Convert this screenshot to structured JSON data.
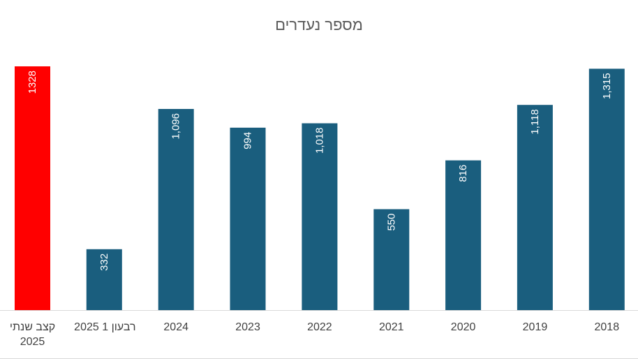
{
  "chart_data": {
    "type": "bar",
    "title": "מספר נעדרים",
    "xlabel": "",
    "ylabel": "",
    "ylim": [
      0,
      1400
    ],
    "grid": false,
    "legend": "none",
    "categories": [
      "קצב שנתי 2025",
      "רבעון 1 2025",
      "2024",
      "2023",
      "2022",
      "2021",
      "2020",
      "2019",
      "2018"
    ],
    "values": [
      1328,
      332,
      1096,
      994,
      1018,
      550,
      816,
      1118,
      1315
    ],
    "data_labels": [
      "1328",
      "332",
      "1,096",
      "994",
      "1,018",
      "550",
      "816",
      "1,118",
      "1,315"
    ],
    "colors": [
      "#ff0000",
      "#1a5e7e",
      "#1a5e7e",
      "#1a5e7e",
      "#1a5e7e",
      "#1a5e7e",
      "#1a5e7e",
      "#1a5e7e",
      "#1a5e7e"
    ]
  }
}
